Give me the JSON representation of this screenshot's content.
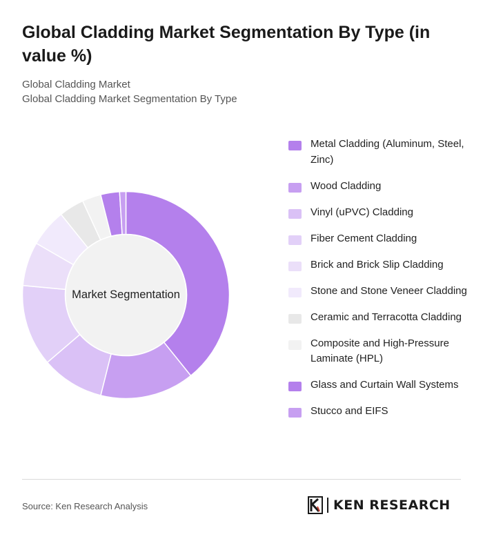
{
  "header": {
    "title": "Global Cladding Market Segmentation By Type (in value %)",
    "subtitle_1": "Global Cladding Market",
    "subtitle_2": "Global Cladding Market Segmentation By Type"
  },
  "chart_data": {
    "type": "pie",
    "variant": "donut",
    "center_label": "Market Segmentation",
    "legend_position": "right",
    "series": [
      {
        "name": "Metal Cladding (Aluminum, Steel, Zinc)",
        "value": 40,
        "color": "#b480ec"
      },
      {
        "name": "Wood Cladding",
        "value": 15,
        "color": "#c79ff1"
      },
      {
        "name": "Vinyl (uPVC) Cladding",
        "value": 10,
        "color": "#dac1f6"
      },
      {
        "name": "Fiber Cement Cladding",
        "value": 13,
        "color": "#e2d0f8"
      },
      {
        "name": "Brick and Brick Slip Cladding",
        "value": 7,
        "color": "#ebdff9"
      },
      {
        "name": "Stone and Stone Veneer Cladding",
        "value": 6,
        "color": "#f1eafc"
      },
      {
        "name": "Ceramic and Terracotta Cladding",
        "value": 4,
        "color": "#e8e8e8"
      },
      {
        "name": "Composite and High-Pressure Laminate (HPL)",
        "value": 3,
        "color": "#f2f2f2"
      },
      {
        "name": "Glass and Curtain Wall Systems",
        "value": 3,
        "color": "#b480ec"
      },
      {
        "name": "Stucco and EIFS",
        "value": 1,
        "color": "#c79ff1"
      }
    ]
  },
  "footer": {
    "source": "Source: Ken Research Analysis",
    "logo_text": "KEN RESEARCH",
    "logo_icon": "ken-research-k-logo"
  }
}
